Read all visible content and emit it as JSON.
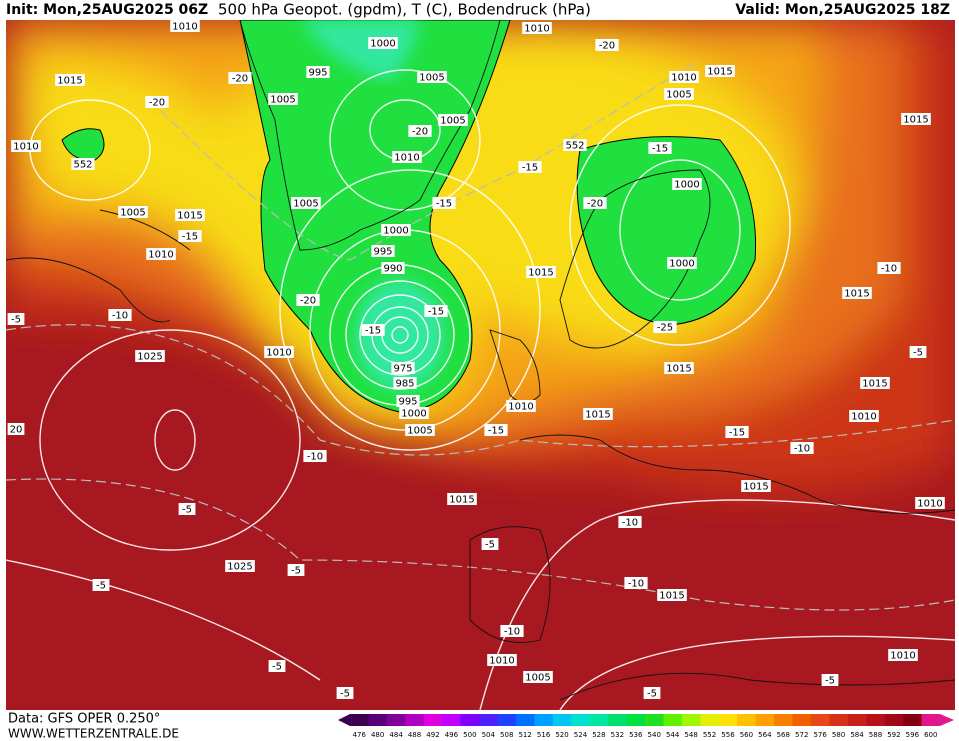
{
  "header": {
    "init": "Init: Mon,25AUG2025 06Z",
    "title": "500 hPa Geopot. (gpdm), T (C), Bodendruck (hPa)",
    "valid": "Valid: Mon,25AUG2025 18Z"
  },
  "footer": {
    "source": "Data: GFS OPER 0.250°",
    "site": "WWW.WETTERZENTRALE.DE"
  },
  "legend": {
    "labels": [
      "476",
      "480",
      "484",
      "488",
      "492",
      "496",
      "500",
      "504",
      "508",
      "512",
      "516",
      "520",
      "524",
      "528",
      "532",
      "536",
      "540",
      "544",
      "548",
      "552",
      "556",
      "560",
      "564",
      "568",
      "572",
      "576",
      "580",
      "584",
      "588",
      "592",
      "596",
      "600"
    ],
    "colors": [
      "#3c0050",
      "#5a0078",
      "#80009c",
      "#b000c0",
      "#e000e0",
      "#c000ff",
      "#8000ff",
      "#5020ff",
      "#2040ff",
      "#0070ff",
      "#00a0ff",
      "#00c8f0",
      "#00e0d0",
      "#00e8a0",
      "#00e070",
      "#00e040",
      "#20e020",
      "#60f000",
      "#a0f800",
      "#e0f000",
      "#ffe000",
      "#ffc000",
      "#ffa000",
      "#f88000",
      "#f06000",
      "#e84818",
      "#d83018",
      "#c82018",
      "#b81018",
      "#a00818",
      "#880010",
      "#e01890"
    ]
  },
  "map_labels": [
    "1010",
    "1000",
    "1010",
    "-20",
    "1015",
    "-20",
    "995",
    "1005",
    "1010",
    "1015",
    "-20",
    "1005",
    "1005",
    "-20",
    "1005",
    "1015",
    "1010",
    "552",
    "1010",
    "552",
    "-15",
    "-15",
    "1000",
    "1005",
    "-15",
    "-20",
    "1005",
    "1015",
    "1000",
    "-15",
    "995",
    "1010",
    "990",
    "1000",
    "1015",
    "-10",
    "-20",
    "1015",
    "-15",
    "-5",
    "-10",
    "-15",
    "-25",
    "1010",
    "1025",
    "975",
    "985",
    "1015",
    "-5",
    "1015",
    "995",
    "1000",
    "1010",
    "1015",
    "1010",
    "20",
    "1005",
    "-15",
    "-15",
    "-10",
    "-10",
    "1015",
    "1015",
    "1010",
    "-5",
    "-10",
    "-5",
    "1025",
    "-5",
    "-5",
    "-10",
    "1015",
    "-10",
    "1010",
    "1010",
    "-5",
    "1005",
    "-5",
    "-5",
    "-5"
  ]
}
